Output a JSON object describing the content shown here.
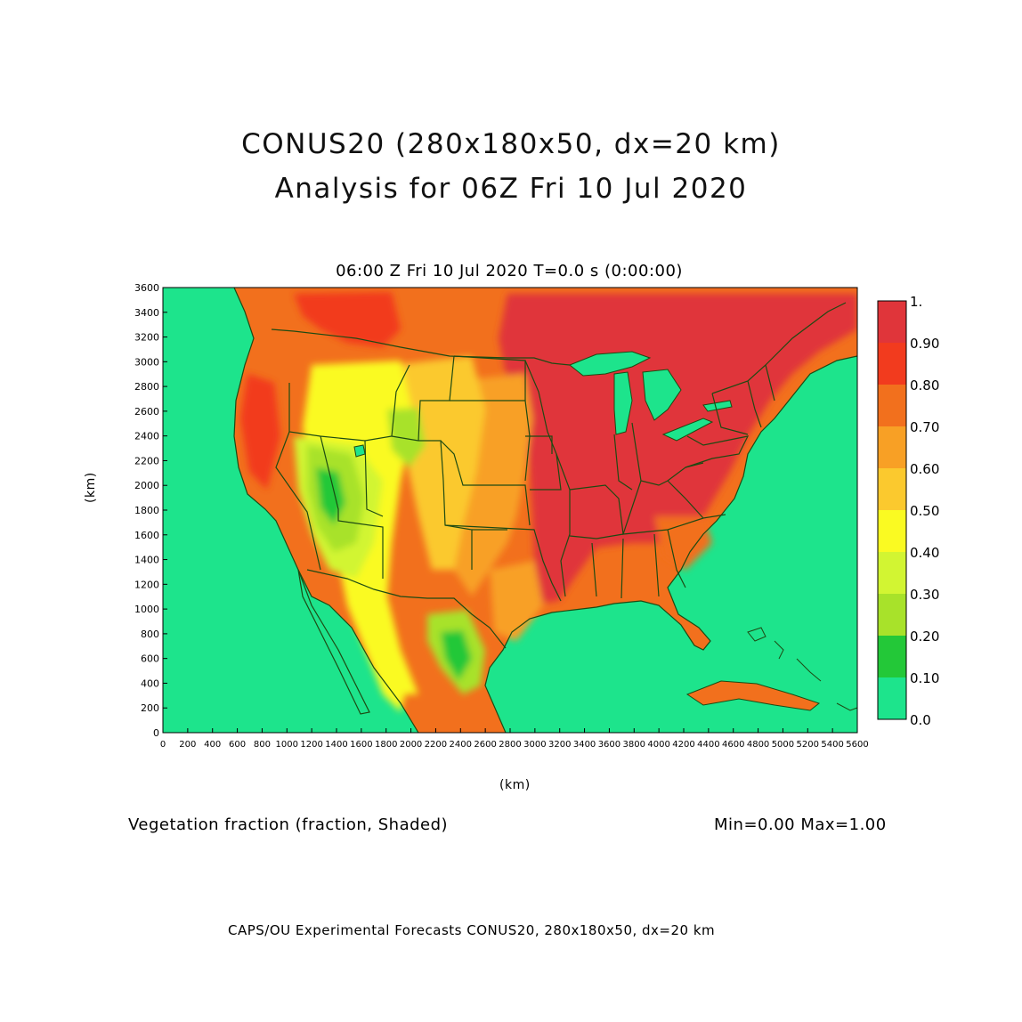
{
  "title": {
    "line1": "CONUS20 (280x180x50, dx=20 km)",
    "line2": "Analysis for 06Z Fri 10 Jul 2020"
  },
  "subtitle": "06:00 Z Fri 10 Jul 2020    T=0.0 s (0:00:00)",
  "axes": {
    "x_label": "(km)",
    "y_label": "(km)",
    "x_ticks": [
      "0",
      "200",
      "400",
      "600",
      "800",
      "1000",
      "1200",
      "1400",
      "1600",
      "1800",
      "2000",
      "2200",
      "2400",
      "2600",
      "2800",
      "3000",
      "3200",
      "3400",
      "3600",
      "3800",
      "4000",
      "4200",
      "4400",
      "4600",
      "4800",
      "5000",
      "5200",
      "5400",
      "5600"
    ],
    "y_ticks": [
      "0",
      "200",
      "400",
      "600",
      "800",
      "1000",
      "1200",
      "1400",
      "1600",
      "1800",
      "2000",
      "2200",
      "2400",
      "2600",
      "2800",
      "3000",
      "3200",
      "3400",
      "3600"
    ],
    "x_range": [
      0,
      5600
    ],
    "y_range": [
      0,
      3600
    ]
  },
  "legend": {
    "labels": [
      "1.",
      "0.90",
      "0.80",
      "0.70",
      "0.60",
      "0.50",
      "0.40",
      "0.30",
      "0.20",
      "0.10",
      "0.0"
    ],
    "colors": [
      "#e0353a",
      "#f23b1e",
      "#f2701d",
      "#f8a025",
      "#fbc92e",
      "#fafa22",
      "#d2f532",
      "#a8e22a",
      "#23c838",
      "#1de48c"
    ]
  },
  "colors": {
    "ocean": "#1de48c",
    "border": "#1d4a12"
  },
  "field_label": "Vegetation fraction (fraction, Shaded)",
  "minmax": "Min=0.00  Max=1.00",
  "footer": "CAPS/OU Experimental Forecasts  CONUS20, 280x180x50, dx=20 km"
}
